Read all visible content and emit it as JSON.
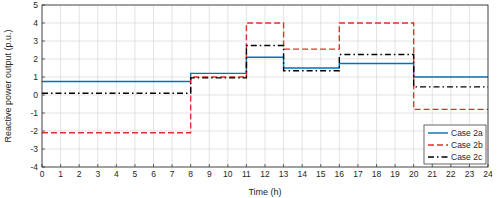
{
  "chart_data": {
    "type": "step",
    "x_label": "Time (h)",
    "y_label": "Reactive power output (p.u.)",
    "x": [
      0,
      8,
      11,
      13,
      16,
      20
    ],
    "series": [
      {
        "name": "Case 2a",
        "color": "#0072bd",
        "line_style": "solid",
        "values": [
          0.75,
          1.2,
          2.1,
          1.5,
          1.75,
          1.0
        ]
      },
      {
        "name": "Case 2b",
        "color": "#e0302a",
        "line_style": "dashed",
        "values": [
          -2.1,
          1.0,
          4.0,
          2.55,
          4.0,
          -0.8
        ]
      },
      {
        "name": "Case 2c",
        "color": "#000000",
        "line_style": "dashdot",
        "values": [
          0.1,
          0.95,
          2.75,
          1.35,
          2.25,
          0.45
        ]
      }
    ],
    "xlim": [
      0,
      24
    ],
    "ylim": [
      -4,
      5
    ],
    "xticks": [
      0,
      1,
      2,
      3,
      4,
      5,
      6,
      7,
      8,
      9,
      10,
      11,
      12,
      13,
      14,
      15,
      16,
      17,
      18,
      19,
      20,
      21,
      22,
      23,
      24
    ],
    "yticks": [
      -4,
      -3,
      -2,
      -1,
      0,
      1,
      2,
      3,
      4,
      5
    ],
    "grid": true,
    "legend": "lower-right"
  }
}
